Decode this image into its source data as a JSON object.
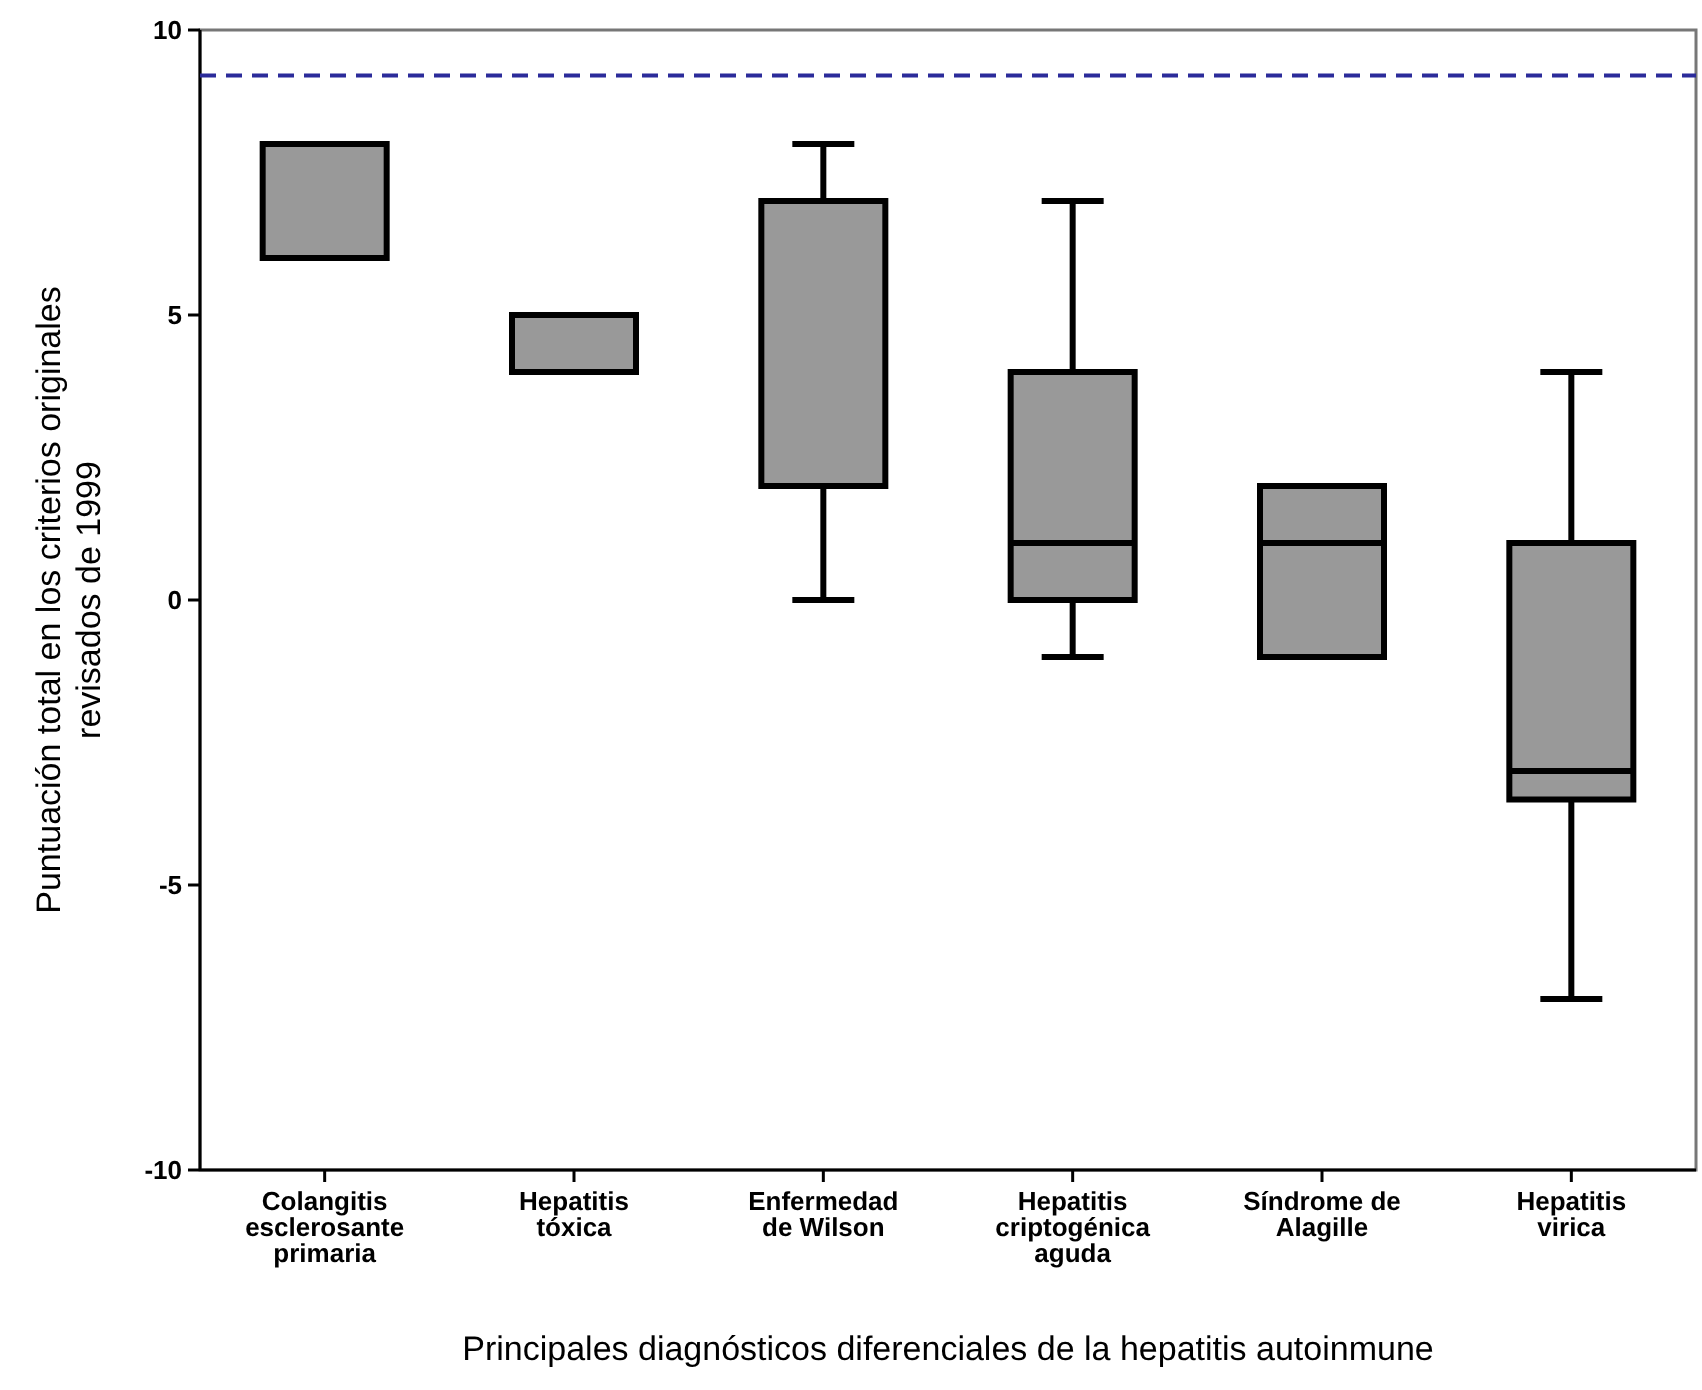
{
  "chart_data": {
    "type": "box",
    "xlabel": "Principales diagnósticos diferenciales de la hepatitis autoinmune",
    "ylabel": "Puntuación total en los criterios originales\nrevisados de 1999",
    "categories": [
      "Colangitis\nesclerosante\nprimaria",
      "Hepatitis\ntóxica",
      "Enfermedad\nde Wilson",
      "Hepatitis\ncriptogénica\naguda",
      "Síndrome de\nAlagille",
      "Hepatitis\nvirica"
    ],
    "color": "#999999",
    "boxes": [
      {
        "low": 6,
        "q1": 6,
        "median": 6,
        "q3": 8,
        "high": 8
      },
      {
        "low": 4,
        "q1": 4,
        "median": 5,
        "q3": 5,
        "high": 5
      },
      {
        "low": 0,
        "q1": 2,
        "median": 2,
        "q3": 7,
        "high": 8
      },
      {
        "low": -1,
        "q1": 0,
        "median": 1,
        "q3": 4,
        "high": 7
      },
      {
        "low": -1,
        "q1": -1,
        "median": 1,
        "q3": 2,
        "high": 2
      },
      {
        "low": -7,
        "q1": -3.5,
        "median": -3,
        "q3": 1,
        "high": 4
      }
    ],
    "ylim": [
      -10,
      10
    ],
    "yticks": [
      -10,
      -5,
      0,
      5,
      10
    ],
    "ref_lines": [
      {
        "axis": "y",
        "value": 9.2,
        "color": "#2b2b9a",
        "line_style": "dashed"
      }
    ],
    "grid": false
  }
}
